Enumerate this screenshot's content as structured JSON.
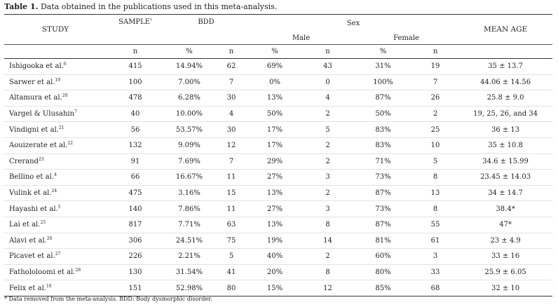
{
  "caption": {
    "label": "Table 1.",
    "text": " Data obtained in the publications used in this meta-analysis."
  },
  "headers": {
    "study": "STUDY",
    "sample": "SAMPLE'",
    "bdd": "BDD",
    "sex": "Sex",
    "male": "Male",
    "female": "Female",
    "mean_age": "MEAN AGE",
    "sub": [
      "n",
      "%",
      "n",
      "%",
      "n",
      "%",
      "n"
    ]
  },
  "rows": [
    {
      "study": "Ishigooka et al.",
      "ref": "6",
      "sample": "415",
      "bdd_pct": "14.94%",
      "bdd_n": "62",
      "male_pct": "69%",
      "male_n": "43",
      "female_pct": "31%",
      "female_n": "19",
      "age": "35 ± 13.7"
    },
    {
      "study": "Sarwer et al.",
      "ref": "19",
      "sample": "100",
      "bdd_pct": "7.00%",
      "bdd_n": "7",
      "male_pct": "0%",
      "male_n": "0",
      "female_pct": "100%",
      "female_n": "7",
      "age": "44.06 ± 14.56"
    },
    {
      "study": "Altamura et al.",
      "ref": "20",
      "sample": "478",
      "bdd_pct": "6.28%",
      "bdd_n": "30",
      "male_pct": "13%",
      "male_n": "4",
      "female_pct": "87%",
      "female_n": "26",
      "age": "25.8 ± 9.0"
    },
    {
      "study": "Vargel & Ulusahin",
      "ref": "7",
      "sample": "40",
      "bdd_pct": "10.00%",
      "bdd_n": "4",
      "male_pct": "50%",
      "male_n": "2",
      "female_pct": "50%",
      "female_n": "2",
      "age": "19, 25, 26, and 34"
    },
    {
      "study": "Vindigni et al.",
      "ref": "21",
      "sample": "56",
      "bdd_pct": "53.57%",
      "bdd_n": "30",
      "male_pct": "17%",
      "male_n": "5",
      "female_pct": "83%",
      "female_n": "25",
      "age": "36 ± 13"
    },
    {
      "study": "Aouizerate et al.",
      "ref": "22",
      "sample": "132",
      "bdd_pct": "9.09%",
      "bdd_n": "12",
      "male_pct": "17%",
      "male_n": "2",
      "female_pct": "83%",
      "female_n": "10",
      "age": "35 ± 10.8"
    },
    {
      "study": "Crerand",
      "ref": "23",
      "sample": "91",
      "bdd_pct": "7.69%",
      "bdd_n": "7",
      "male_pct": "29%",
      "male_n": "2",
      "female_pct": "71%",
      "female_n": "5",
      "age": "34.6 ± 15.99"
    },
    {
      "study": "Bellino et al.",
      "ref": "4",
      "sample": "66",
      "bdd_pct": "16.67%",
      "bdd_n": "11",
      "male_pct": "27%",
      "male_n": "3",
      "female_pct": "73%",
      "female_n": "8",
      "age": "23.45 ± 14.03"
    },
    {
      "study": "Vulink et al.",
      "ref": "24",
      "sample": "475",
      "bdd_pct": "3.16%",
      "bdd_n": "15",
      "male_pct": "13%",
      "male_n": "2",
      "female_pct": "87%",
      "female_n": "13",
      "age": "34 ± 14.7"
    },
    {
      "study": "Hayashi et al.",
      "ref": "5",
      "sample": "140",
      "bdd_pct": "7.86%",
      "bdd_n": "11",
      "male_pct": "27%",
      "male_n": "3",
      "female_pct": "73%",
      "female_n": "8",
      "age": "38.4*"
    },
    {
      "study": "Lai et al.",
      "ref": "25",
      "sample": "817",
      "bdd_pct": "7.71%",
      "bdd_n": "63",
      "male_pct": "13%",
      "male_n": "8",
      "female_pct": "87%",
      "female_n": "55",
      "age": "47*"
    },
    {
      "study": "Alavi et al.",
      "ref": "26",
      "sample": "306",
      "bdd_pct": "24.51%",
      "bdd_n": "75",
      "male_pct": "19%",
      "male_n": "14",
      "female_pct": "81%",
      "female_n": "61",
      "age": "23 ± 4.9"
    },
    {
      "study": "Picavet et al.",
      "ref": "27",
      "sample": "226",
      "bdd_pct": "2.21%",
      "bdd_n": "5",
      "male_pct": "40%",
      "male_n": "2",
      "female_pct": "60%",
      "female_n": "3",
      "age": "33 ± 16"
    },
    {
      "study": "Fathololoomi et al.",
      "ref": "28",
      "sample": "130",
      "bdd_pct": "31.54%",
      "bdd_n": "41",
      "male_pct": "20%",
      "male_n": "8",
      "female_pct": "80%",
      "female_n": "33",
      "age": "25.9 ± 6.05"
    },
    {
      "study": "Felix et al.",
      "ref": "10",
      "sample": "151",
      "bdd_pct": "52.98%",
      "bdd_n": "80",
      "male_pct": "15%",
      "male_n": "12",
      "female_pct": "85%",
      "female_n": "68",
      "age": "32 ± 10"
    }
  ],
  "footnote": "* Data removed from the meta-analysis. BDD: Body dysmorphic disorder."
}
